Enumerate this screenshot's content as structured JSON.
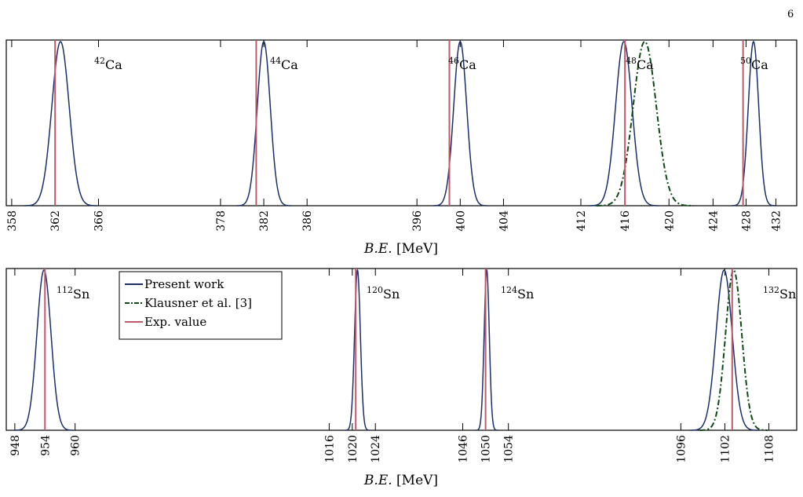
{
  "page_number": "6",
  "colors": {
    "present": "#1b2f6b",
    "klausner": "#0e4a17",
    "exp": "#c0586a",
    "axis": "#000000"
  },
  "chart_data": [
    {
      "type": "line",
      "xlabel_var": "B.E.",
      "xlabel_unit": " [MeV]",
      "ylabel": "",
      "title": "",
      "grid": false,
      "segments": [
        {
          "xlim": [
            357.5,
            368.5
          ],
          "ticks": [
            358,
            362,
            366
          ],
          "tick_labels": [
            "358",
            "362",
            "366"
          ]
        },
        {
          "xlim": [
            376.7,
            387.8
          ],
          "ticks": [
            378,
            382,
            386
          ],
          "tick_labels": [
            "378",
            "382",
            "386"
          ]
        },
        {
          "xlim": [
            394.9,
            406.0
          ],
          "ticks": [
            396,
            400,
            404
          ],
          "tick_labels": [
            "396",
            "400",
            "404"
          ]
        },
        {
          "xlim": [
            411.5,
            424.9
          ],
          "ticks": [
            412,
            416,
            420,
            424
          ],
          "tick_labels": [
            "412",
            "416",
            "420",
            "424"
          ]
        },
        {
          "xlim": [
            424.9,
            434.8
          ],
          "ticks": [
            428,
            432
          ],
          "tick_labels": [
            "428",
            "432"
          ]
        }
      ],
      "present_work": [
        {
          "nucleus": "Ca",
          "mass": "42",
          "mu": 362.5,
          "sigma": 0.8
        },
        {
          "nucleus": "Ca",
          "mass": "44",
          "mu": 382.0,
          "sigma": 0.6
        },
        {
          "nucleus": "Ca",
          "mass": "46",
          "mu": 400.0,
          "sigma": 0.6
        },
        {
          "nucleus": "Ca",
          "mass": "48",
          "mu": 415.9,
          "sigma": 0.75
        },
        {
          "nucleus": "Ca",
          "mass": "50",
          "mu": 429.0,
          "sigma": 0.7
        }
      ],
      "klausner": [
        {
          "mu": 417.8,
          "sigma": 1.05,
          "segment": 3
        }
      ],
      "exp_values": [
        362.0,
        381.3,
        399.0,
        416.0,
        427.6
      ]
    },
    {
      "type": "line",
      "xlabel_var": "B.E.",
      "xlabel_unit": " [MeV]",
      "ylabel": "",
      "title": "",
      "grid": false,
      "segments": [
        {
          "xlim": [
            946.3,
            963.8
          ],
          "ticks": [
            948,
            954,
            960
          ],
          "tick_labels": [
            "948",
            "954",
            "960"
          ]
        },
        {
          "xlim": [
            1015.0,
            1025.6
          ],
          "ticks": [
            1016,
            1020,
            1024
          ],
          "tick_labels": [
            "1016",
            "1020",
            "1024"
          ]
        },
        {
          "xlim": [
            1045.1,
            1061.2
          ],
          "ticks": [
            1046,
            1050,
            1054
          ],
          "tick_labels": [
            "1046",
            "1050",
            "1054"
          ]
        },
        {
          "xlim": [
            1092.0,
            1111.8
          ],
          "ticks": [
            1096,
            1102,
            1108
          ],
          "tick_labels": [
            "1096",
            "1102",
            "1108"
          ]
        }
      ],
      "present_work": [
        {
          "nucleus": "Sn",
          "mass": "112",
          "mu": 953.8,
          "sigma": 1.4
        },
        {
          "nucleus": "Sn",
          "mass": "120",
          "mu": 1020.9,
          "sigma": 0.5
        },
        {
          "nucleus": "Sn",
          "mass": "124",
          "mu": 1050.2,
          "sigma": 0.45
        },
        {
          "nucleus": "Sn",
          "mass": "132",
          "mu": 1101.9,
          "sigma": 1.1
        }
      ],
      "klausner": [
        {
          "mu": 1103.2,
          "sigma": 1.1,
          "segment": 3
        }
      ],
      "exp_values": [
        954.0,
        1020.6,
        1050.0,
        1103.0
      ]
    }
  ],
  "legend": {
    "placement": "top-left",
    "entries": [
      {
        "key": "present",
        "label": "Present work"
      },
      {
        "key": "klausner",
        "label": "Klausner et al. [3]"
      },
      {
        "key": "exp",
        "label": "Exp. value"
      }
    ]
  }
}
